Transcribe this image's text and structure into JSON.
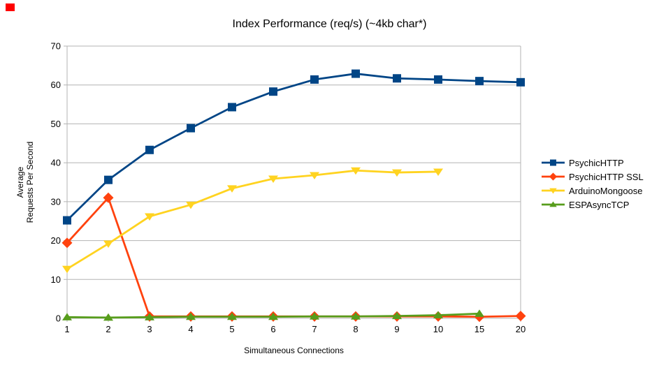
{
  "overlay": {
    "marker_color": "#fe0000"
  },
  "chart_data": {
    "type": "line",
    "title": "Index Performance (req/s) (~4kb char*)",
    "xlabel": "Simultaneous Connections",
    "ylabel": "Average Requests Per Second",
    "ylabel_lines": [
      "Average",
      "Requests Per Second"
    ],
    "categories": [
      "1",
      "2",
      "3",
      "4",
      "5",
      "6",
      "7",
      "8",
      "9",
      "10",
      "15",
      "20"
    ],
    "yticks": [
      0,
      10,
      20,
      30,
      40,
      50,
      60,
      70
    ],
    "ylim": [
      0,
      70
    ],
    "grid": "horizontal",
    "legend_position": "right",
    "gridline_color": "#b3b3b3",
    "axis_color": "#b3b3b3",
    "text_color": "#000000",
    "series": [
      {
        "name": "PsychicHTTP",
        "color": "#004586",
        "marker": "square",
        "values": [
          25.2,
          35.6,
          43.3,
          48.9,
          54.3,
          58.3,
          61.4,
          62.9,
          61.7,
          61.4,
          61.0,
          60.7
        ]
      },
      {
        "name": "PsychicHTTP SSL",
        "color": "#ff420e",
        "marker": "diamond",
        "values": [
          19.4,
          31.0,
          0.5,
          0.5,
          0.5,
          0.5,
          0.5,
          0.5,
          0.5,
          0.5,
          0.4,
          0.6
        ]
      },
      {
        "name": "ArduinoMongoose",
        "color": "#ffd320",
        "marker": "triangle-down",
        "values": [
          12.7,
          19.2,
          26.2,
          29.2,
          33.4,
          35.9,
          36.8,
          38.0,
          37.5,
          37.7,
          null,
          null
        ]
      },
      {
        "name": "ESPAsyncTCP",
        "color": "#579d1c",
        "marker": "triangle-up",
        "values": [
          0.3,
          0.2,
          0.3,
          0.4,
          0.4,
          0.4,
          0.5,
          0.5,
          0.6,
          0.8,
          1.2,
          null
        ]
      }
    ]
  }
}
